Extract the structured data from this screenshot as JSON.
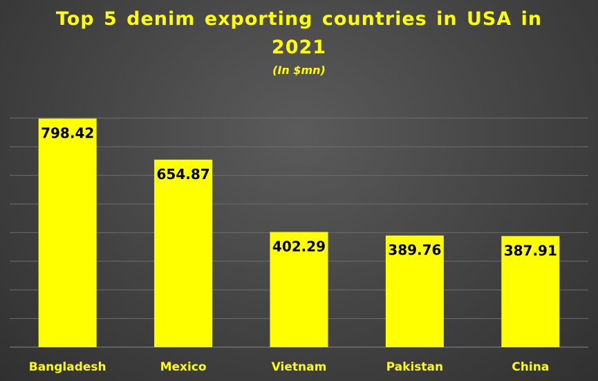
{
  "chart_title_line1": "Top 5 denim exporting countries in USA in",
  "chart_title_line2": "2021",
  "chart_subtitle": "(In $mn)",
  "colors": {
    "bar": "#ffff00",
    "title": "#ffff00",
    "gridline": "#6e6e6e",
    "axis": "#8a8a8a"
  },
  "chart_data": {
    "type": "bar",
    "title": "Top 5 denim exporting countries in USA in 2021",
    "subtitle": "(In $mn)",
    "categories": [
      "Bangladesh",
      "Mexico",
      "Vietnam",
      "Pakistan",
      "China"
    ],
    "values": [
      798.42,
      654.87,
      402.29,
      389.76,
      387.91
    ],
    "value_labels": [
      "798.42",
      "654.87",
      "402.29",
      "389.76",
      "387.91"
    ],
    "ylim": [
      0,
      1000
    ],
    "grid": true,
    "legend": "none"
  }
}
